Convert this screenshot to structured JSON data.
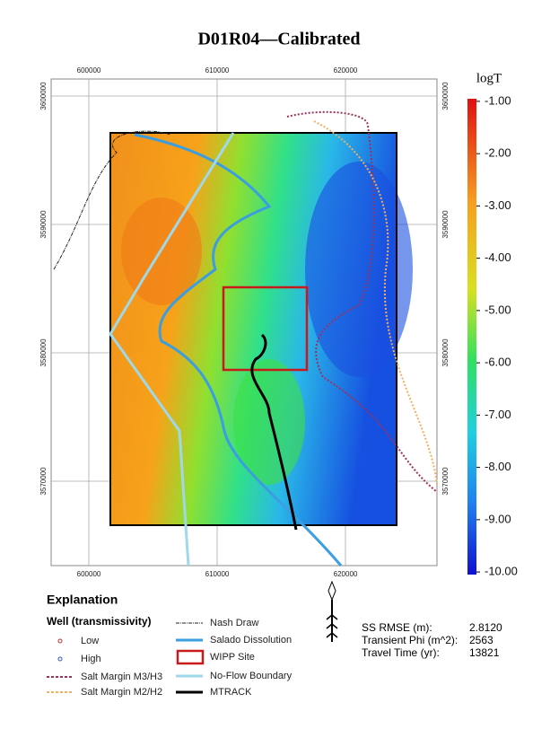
{
  "title": "D01R04—Calibrated",
  "map": {
    "xlim": [
      597063,
      627133
    ],
    "ylim": [
      3563427,
      3601329
    ],
    "xticks": [
      600000,
      610000,
      620000
    ],
    "yticks": [
      3570000,
      3580000,
      3590000,
      3600000
    ]
  },
  "colorbar": {
    "label": "logT",
    "lim": [
      -10.05,
      -0.95
    ],
    "ticks": [
      {
        "value": -1,
        "label": "-1.00"
      },
      {
        "value": -2,
        "label": "-2.00"
      },
      {
        "value": -3,
        "label": "-3.00"
      },
      {
        "value": -4,
        "label": "-4.00"
      },
      {
        "value": -5,
        "label": "-5.00"
      },
      {
        "value": -6,
        "label": "-6.00"
      },
      {
        "value": -7,
        "label": "-7.00"
      },
      {
        "value": -8,
        "label": "-8.00"
      },
      {
        "value": -9,
        "label": "-9.00"
      },
      {
        "value": -10,
        "label": "-10.00"
      }
    ]
  },
  "legend": {
    "heading": "Explanation",
    "subheading": "Well (transmissivity)",
    "items": [
      "Low",
      "High",
      "Salt Margin M3/H3",
      "Salt Margin M2/H2",
      "Nash Draw",
      "Salado Dissolution",
      "WIPP Site",
      "No-Flow Boundary",
      "MTRACK"
    ]
  },
  "stats": [
    {
      "label": "SS RMSE (m):",
      "value": {
        "value": 2.812,
        "label": "2.8120"
      }
    },
    {
      "label": "Transient Phi (m^2):",
      "value": 2563
    },
    {
      "label": "Travel Time (yr):",
      "value": 13821
    }
  ]
}
